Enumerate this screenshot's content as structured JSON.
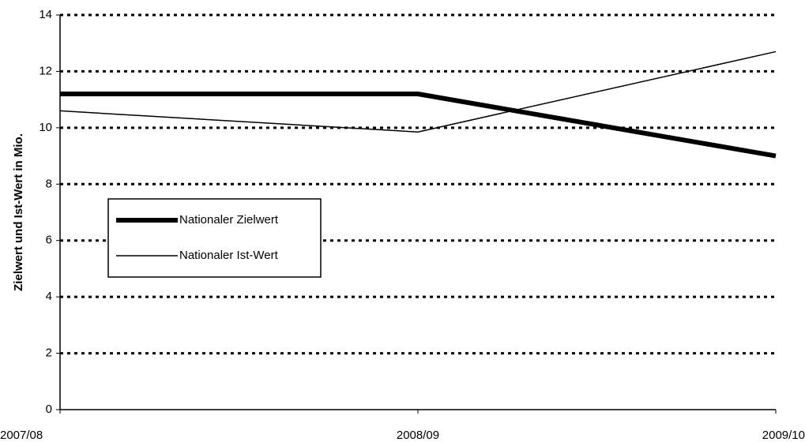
{
  "chart_data": {
    "type": "line",
    "y_label": "Zielwert und Ist-Wert in Mio.",
    "categories": [
      "2007/08",
      "2008/09",
      "2009/10"
    ],
    "series": [
      {
        "name": "Nationaler Zielwert",
        "color": "#000000",
        "values": [
          11.2,
          11.2,
          9.0
        ]
      },
      {
        "name": "Nationaler Ist-Wert",
        "color": "#000000",
        "values": [
          10.6,
          9.85,
          12.7
        ]
      }
    ],
    "ylim": [
      0,
      14
    ],
    "yticks": [
      0,
      2,
      4,
      6,
      8,
      10,
      12,
      14
    ],
    "grid": true,
    "legend": "left"
  }
}
